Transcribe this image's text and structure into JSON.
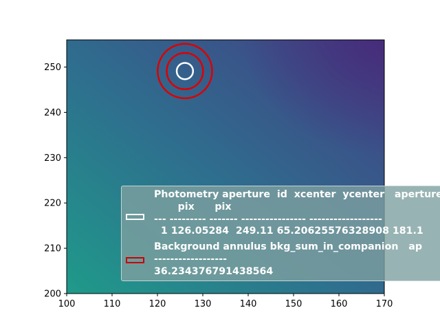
{
  "chart_data": {
    "type": "heatmap",
    "title": "",
    "xlabel": "",
    "ylabel": "",
    "xlim": [
      100,
      170
    ],
    "ylim": [
      200,
      256
    ],
    "x_ticks": [
      100,
      110,
      120,
      130,
      140,
      150,
      160,
      170
    ],
    "y_ticks": [
      210,
      220,
      230,
      240,
      250
    ],
    "y_ticks_labelled": [
      200,
      210,
      220,
      230,
      240,
      250
    ],
    "colormap": "viridis",
    "colors": {
      "low_bottom_left": "#1f9a8a",
      "mid": "#2e6f8e",
      "high_top_right": "#433e85"
    },
    "apertures": [
      {
        "shape": "circle",
        "x": 126.05,
        "y": 249.11,
        "radius": 1.8,
        "color": "#ffffff"
      },
      {
        "shape": "circle",
        "x": 126.05,
        "y": 249.11,
        "radius": 4.0,
        "color": "#dd0000"
      },
      {
        "shape": "circle",
        "x": 126.05,
        "y": 249.11,
        "radius": 6.0,
        "color": "#dd0000"
      }
    ],
    "legend": {
      "placement": "lower-right",
      "entries": [
        {
          "color": "#ffffff",
          "lines": [
            "Photometry aperture  id  xcenter  ycenter   aperture_sum",
            "       pix      pix",
            "--- --------- ------- ---------------- ------------------",
            "  1 126.05284  249.11 65.20625576328908 181.1"
          ]
        },
        {
          "color": "#cc0000",
          "lines": [
            "Background annulus bkg_sum_in_companion   ap",
            "------------------",
            "36.234376791438564"
          ]
        }
      ]
    }
  }
}
